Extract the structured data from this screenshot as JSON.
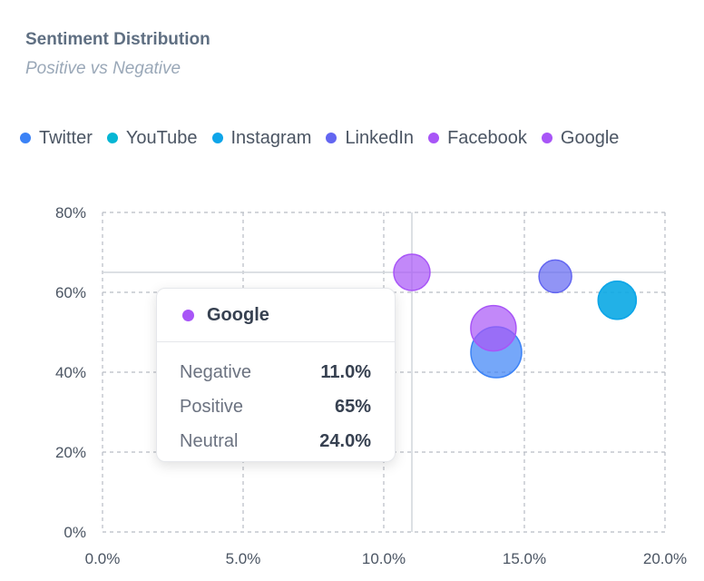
{
  "title": "Sentiment Distribution",
  "subtitle": "Positive vs Negative",
  "chart_data": {
    "type": "scatter",
    "title": "Sentiment Distribution",
    "subtitle": "Positive vs Negative",
    "xlabel": "",
    "ylabel": "",
    "xlim": [
      0,
      20
    ],
    "ylim": [
      0,
      80
    ],
    "x_ticks": [
      "0.0%",
      "5.0%",
      "10.0%",
      "15.0%",
      "20.0%"
    ],
    "y_ticks": [
      "0%",
      "20%",
      "40%",
      "60%",
      "80%"
    ],
    "grid": true,
    "legend_position": "top-left",
    "series": [
      {
        "name": "Twitter",
        "color": "#3b82f6",
        "x": 14.0,
        "y": 45,
        "size": 28
      },
      {
        "name": "YouTube",
        "color": "#06b6d4",
        "x": 18.3,
        "y": 58,
        "size": 21
      },
      {
        "name": "Instagram",
        "color": "#0ea5e9",
        "x": 18.3,
        "y": 58,
        "size": 21
      },
      {
        "name": "LinkedIn",
        "color": "#6366f1",
        "x": 16.1,
        "y": 64,
        "size": 18
      },
      {
        "name": "Facebook",
        "color": "#a855f7",
        "x": 13.9,
        "y": 51,
        "size": 25
      },
      {
        "name": "Google",
        "color": "#a855f7",
        "x": 11.0,
        "y": 65,
        "size": 20
      }
    ],
    "crosshair": {
      "x": 11.0,
      "y": 65
    }
  },
  "tooltip": {
    "name": "Google",
    "color": "#a855f7",
    "rows": [
      {
        "label": "Negative",
        "value": "11.0%"
      },
      {
        "label": "Positive",
        "value": "65%"
      },
      {
        "label": "Neutral",
        "value": "24.0%"
      }
    ]
  }
}
